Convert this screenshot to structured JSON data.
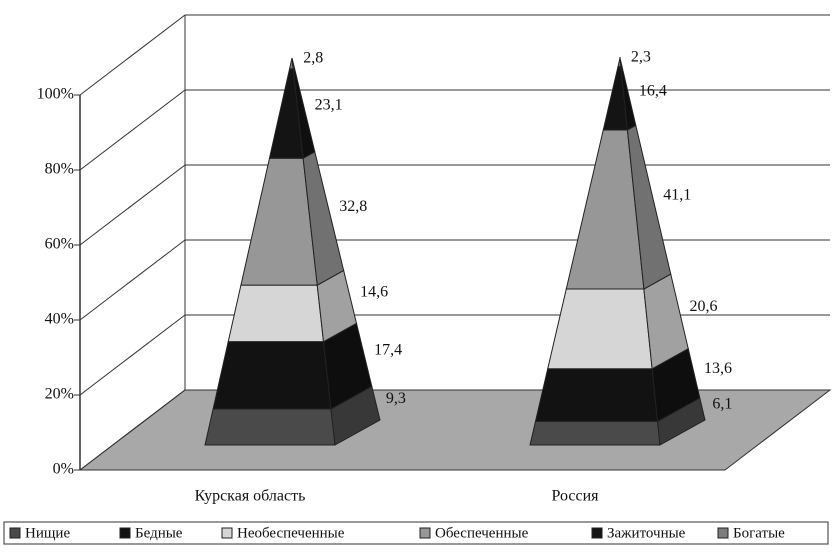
{
  "chart_data": {
    "type": "pyramid",
    "categories": [
      "Курская область",
      "Россия"
    ],
    "ylim": [
      0,
      100
    ],
    "yticks": [
      {
        "value": 0,
        "label": "0%"
      },
      {
        "value": 20,
        "label": "20%"
      },
      {
        "value": 40,
        "label": "40%"
      },
      {
        "value": 60,
        "label": "60%"
      },
      {
        "value": 80,
        "label": "80%"
      },
      {
        "value": 100,
        "label": "100%"
      }
    ],
    "grid": true,
    "stacked": true,
    "legend": "bottom",
    "series": [
      {
        "name": "Нищие",
        "color": "#4a4a4a",
        "values": [
          9.3,
          6.1
        ],
        "value_labels": [
          "9,3",
          "6,1"
        ]
      },
      {
        "name": "Бедные",
        "color": "#121212",
        "values": [
          17.4,
          13.6
        ],
        "value_labels": [
          "17,4",
          "13,6"
        ]
      },
      {
        "name": "Необеспеченные",
        "color": "#d6d6d6",
        "values": [
          14.6,
          20.6
        ],
        "value_labels": [
          "14,6",
          "20,6"
        ]
      },
      {
        "name": "Обеспеченные",
        "color": "#979797",
        "values": [
          32.8,
          41.1
        ],
        "value_labels": [
          "32,8",
          "41,1"
        ]
      },
      {
        "name": "Зажиточные",
        "color": "#141414",
        "values": [
          23.1,
          16.4
        ],
        "value_labels": [
          "23,1",
          "16,4"
        ]
      },
      {
        "name": "Богатые",
        "color": "#7d7d7d",
        "values": [
          2.8,
          2.3
        ],
        "value_labels": [
          "2,8",
          "2,3"
        ]
      }
    ]
  }
}
